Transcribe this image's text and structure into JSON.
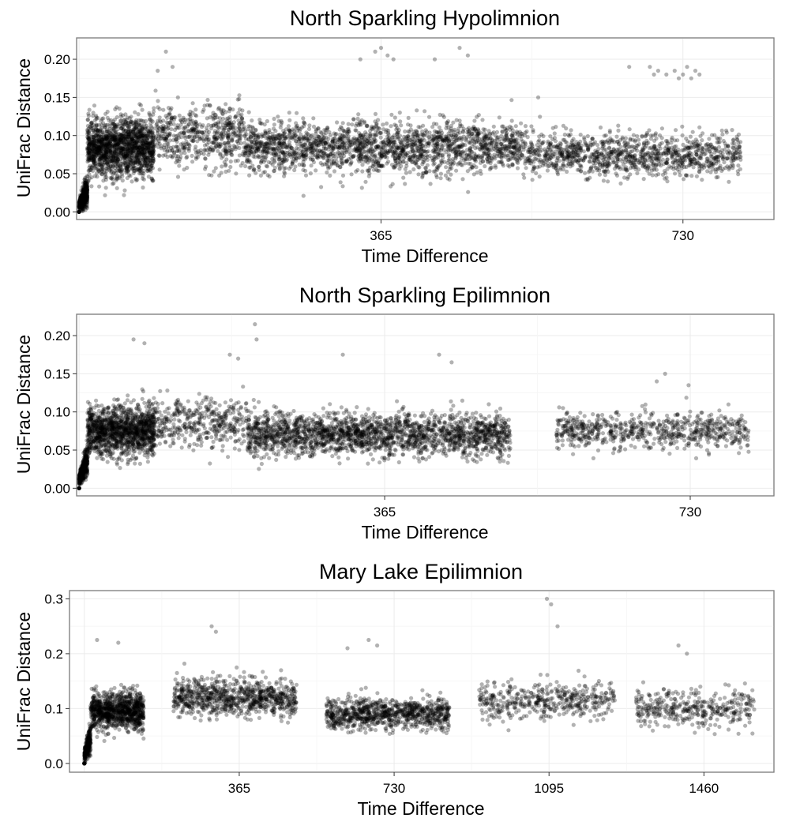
{
  "chart_data": [
    {
      "type": "scatter",
      "title": "North Sparkling Hypolimnion",
      "xlabel": "Time Difference",
      "ylabel": "UniFrac Distance",
      "xlim": [
        -3,
        840
      ],
      "ylim": [
        -0.01,
        0.228
      ],
      "x_ticks": [
        365,
        730
      ],
      "x_tick_labels": [
        "365",
        "730"
      ],
      "y_ticks": [
        0.0,
        0.05,
        0.1,
        0.15,
        0.2
      ],
      "y_tick_labels": [
        "0.00",
        "0.05",
        "0.10",
        "0.15",
        "0.20"
      ],
      "grid": true,
      "point_color": "#000000",
      "point_opacity": 0.3,
      "clusters": [
        {
          "x": [
            0,
            10
          ],
          "y_center": 0.03,
          "y_spread": 0.02,
          "count": 500
        },
        {
          "x": [
            10,
            90
          ],
          "y_center": 0.085,
          "y_spread": 0.035,
          "count": 1500
        },
        {
          "x": [
            90,
            200
          ],
          "y_center": 0.1,
          "y_spread": 0.035,
          "count": 550
        },
        {
          "x": [
            200,
            540
          ],
          "y_center": 0.085,
          "y_spread": 0.03,
          "count": 2000
        },
        {
          "x": [
            540,
            800
          ],
          "y_center": 0.075,
          "y_spread": 0.025,
          "count": 1100
        }
      ],
      "points": [
        {
          "x": 105,
          "y": 0.21
        },
        {
          "x": 113,
          "y": 0.19
        },
        {
          "x": 95,
          "y": 0.185
        },
        {
          "x": 365,
          "y": 0.215
        },
        {
          "x": 373,
          "y": 0.205
        },
        {
          "x": 358,
          "y": 0.21
        },
        {
          "x": 380,
          "y": 0.2
        },
        {
          "x": 340,
          "y": 0.2
        },
        {
          "x": 460,
          "y": 0.215
        },
        {
          "x": 470,
          "y": 0.205
        },
        {
          "x": 430,
          "y": 0.2
        },
        {
          "x": 555,
          "y": 0.15
        },
        {
          "x": 665,
          "y": 0.19
        },
        {
          "x": 690,
          "y": 0.19
        },
        {
          "x": 700,
          "y": 0.185
        },
        {
          "x": 710,
          "y": 0.18
        },
        {
          "x": 720,
          "y": 0.185
        },
        {
          "x": 730,
          "y": 0.18
        },
        {
          "x": 740,
          "y": 0.175
        },
        {
          "x": 735,
          "y": 0.19
        },
        {
          "x": 745,
          "y": 0.185
        },
        {
          "x": 750,
          "y": 0.18
        },
        {
          "x": 725,
          "y": 0.175
        },
        {
          "x": 695,
          "y": 0.18
        }
      ]
    },
    {
      "type": "scatter",
      "title": "North Sparkling Epilimnion",
      "xlabel": "Time Difference",
      "ylabel": "UniFrac Distance",
      "xlim": [
        -3,
        830
      ],
      "ylim": [
        -0.01,
        0.228
      ],
      "x_ticks": [
        365,
        730
      ],
      "x_tick_labels": [
        "365",
        "730"
      ],
      "y_ticks": [
        0.0,
        0.05,
        0.1,
        0.15,
        0.2
      ],
      "y_tick_labels": [
        "0.00",
        "0.05",
        "0.10",
        "0.15",
        "0.20"
      ],
      "grid": true,
      "point_color": "#000000",
      "point_opacity": 0.3,
      "clusters": [
        {
          "x": [
            0,
            10
          ],
          "y_center": 0.04,
          "y_spread": 0.02,
          "count": 450
        },
        {
          "x": [
            10,
            90
          ],
          "y_center": 0.075,
          "y_spread": 0.03,
          "count": 1300
        },
        {
          "x": [
            90,
            200
          ],
          "y_center": 0.085,
          "y_spread": 0.03,
          "count": 400
        },
        {
          "x": [
            200,
            515
          ],
          "y_center": 0.07,
          "y_spread": 0.025,
          "count": 2100
        },
        {
          "x": [
            570,
            800
          ],
          "y_center": 0.075,
          "y_spread": 0.022,
          "count": 700
        }
      ],
      "points": [
        {
          "x": 210,
          "y": 0.215
        },
        {
          "x": 212,
          "y": 0.195
        },
        {
          "x": 180,
          "y": 0.175
        },
        {
          "x": 65,
          "y": 0.195
        },
        {
          "x": 78,
          "y": 0.19
        },
        {
          "x": 190,
          "y": 0.17
        },
        {
          "x": 315,
          "y": 0.175
        },
        {
          "x": 430,
          "y": 0.175
        },
        {
          "x": 445,
          "y": 0.165
        },
        {
          "x": 700,
          "y": 0.15
        },
        {
          "x": 690,
          "y": 0.14
        },
        {
          "x": 728,
          "y": 0.135
        }
      ]
    },
    {
      "type": "scatter",
      "title": "Mary Lake Epilimnion",
      "xlabel": "Time Difference",
      "ylabel": "UniFrac Distance",
      "xlim": [
        -35,
        1625
      ],
      "ylim": [
        -0.016,
        0.315
      ],
      "x_ticks": [
        365,
        730,
        1095,
        1460
      ],
      "x_tick_labels": [
        "365",
        "730",
        "1095",
        "1460"
      ],
      "y_ticks": [
        0.0,
        0.1,
        0.2,
        0.3
      ],
      "y_tick_labels": [
        "0.0",
        "0.1",
        "0.2",
        "0.3"
      ],
      "grid": true,
      "point_color": "#000000",
      "point_opacity": 0.3,
      "clusters": [
        {
          "x": [
            0,
            15
          ],
          "y_center": 0.05,
          "y_spread": 0.03,
          "count": 250
        },
        {
          "x": [
            15,
            140
          ],
          "y_center": 0.095,
          "y_spread": 0.03,
          "count": 1000
        },
        {
          "x": [
            210,
            500
          ],
          "y_center": 0.12,
          "y_spread": 0.03,
          "count": 850
        },
        {
          "x": [
            570,
            860
          ],
          "y_center": 0.09,
          "y_spread": 0.025,
          "count": 900
        },
        {
          "x": [
            930,
            1250
          ],
          "y_center": 0.115,
          "y_spread": 0.03,
          "count": 450
        },
        {
          "x": [
            1300,
            1580
          ],
          "y_center": 0.1,
          "y_spread": 0.03,
          "count": 380
        }
      ],
      "points": [
        {
          "x": 300,
          "y": 0.25
        },
        {
          "x": 310,
          "y": 0.24
        },
        {
          "x": 30,
          "y": 0.225
        },
        {
          "x": 80,
          "y": 0.22
        },
        {
          "x": 670,
          "y": 0.225
        },
        {
          "x": 690,
          "y": 0.215
        },
        {
          "x": 1090,
          "y": 0.3
        },
        {
          "x": 1100,
          "y": 0.29
        },
        {
          "x": 1115,
          "y": 0.25
        },
        {
          "x": 1400,
          "y": 0.215
        },
        {
          "x": 1420,
          "y": 0.2
        },
        {
          "x": 620,
          "y": 0.21
        }
      ]
    }
  ]
}
